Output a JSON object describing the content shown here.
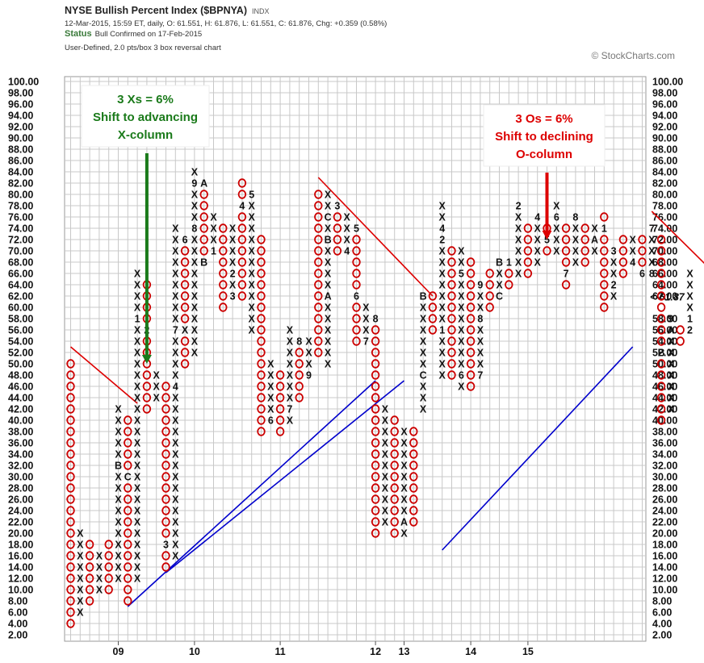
{
  "header": {
    "title": "NYSE Bullish Percent Index ($BPNYA)",
    "ticker_type": "INDX",
    "quote_line": "12-Mar-2015, 15:59 ET, daily, O: 61.551, H: 61.876, L: 61.551, C: 61.876, Chg: +0.359 (0.58%)",
    "status_label": "Status",
    "status_text": "Bull Confirmed on 17-Feb-2015",
    "chart_type": "User-Defined, 2.0 pts/box 3 box reversal chart",
    "copyright": "© StockCharts.com"
  },
  "colors": {
    "x_mark": "#111111",
    "o_mark": "#cc0000",
    "trend_up": "#0000cc",
    "trend_down": "#dd0000",
    "arrow_green": "#1a7a1a",
    "arrow_red": "#dd0000",
    "last_price": "#cc0000",
    "grid": "#c8c8c8"
  },
  "chart_data": {
    "type": "point-and-figure",
    "box_size": 2.0,
    "reversal_boxes": 3,
    "ylim": [
      2,
      100
    ],
    "y_ticks": [
      "2.00",
      "4.00",
      "6.00",
      "8.00",
      "10.00",
      "12.00",
      "14.00",
      "16.00",
      "18.00",
      "20.00",
      "22.00",
      "24.00",
      "26.00",
      "28.00",
      "30.00",
      "32.00",
      "34.00",
      "36.00",
      "38.00",
      "40.00",
      "42.00",
      "44.00",
      "46.00",
      "48.00",
      "50.00",
      "52.00",
      "54.00",
      "56.00",
      "58.00",
      "60.00",
      "62.00",
      "64.00",
      "66.00",
      "68.00",
      "70.00",
      "72.00",
      "74.00",
      "76.00",
      "78.00",
      "80.00",
      "82.00",
      "84.00",
      "86.00",
      "88.00",
      "90.00",
      "92.00",
      "94.00",
      "96.00",
      "98.00",
      "100.00"
    ],
    "highlighted_y_tick": "60.00",
    "last_value_label": "<-61.87",
    "x_year_labels": [
      {
        "label": "09",
        "col": 5
      },
      {
        "label": "10",
        "col": 13
      },
      {
        "label": "11",
        "col": 22
      },
      {
        "label": "12",
        "col": 32
      },
      {
        "label": "13",
        "col": 35
      },
      {
        "label": "14",
        "col": 42
      },
      {
        "label": "15",
        "col": 48
      }
    ],
    "columns": [
      {
        "type": "O",
        "top": 50,
        "bottom": 4,
        "labels": {}
      },
      {
        "type": "X",
        "top": 20,
        "bottom": 6,
        "labels": {
          "28": "A"
        }
      },
      {
        "type": "O",
        "top": 18,
        "bottom": 8,
        "labels": {}
      },
      {
        "type": "X",
        "top": 16,
        "bottom": 10,
        "labels": {}
      },
      {
        "type": "O",
        "top": 18,
        "bottom": 10,
        "labels": {}
      },
      {
        "type": "X",
        "top": 42,
        "bottom": 12,
        "labels": {
          "32": "B"
        }
      },
      {
        "type": "O",
        "top": 40,
        "bottom": 8,
        "labels": {
          "30": "C"
        }
      },
      {
        "type": "X",
        "top": 66,
        "bottom": 12,
        "labels": {
          "58": "1"
        }
      },
      {
        "type": "O",
        "top": 64,
        "bottom": 42,
        "labels": {
          "56": "2"
        }
      },
      {
        "type": "X",
        "top": 48,
        "bottom": 44,
        "labels": {}
      },
      {
        "type": "O",
        "top": 46,
        "bottom": 14,
        "labels": {
          "48": "2",
          "18": "3"
        }
      },
      {
        "type": "X",
        "top": 74,
        "bottom": 16,
        "labels": {
          "46": "4",
          "56": "7"
        }
      },
      {
        "type": "O",
        "top": 72,
        "bottom": 50,
        "labels": {
          "72": "6",
          "56": "X"
        }
      },
      {
        "type": "X",
        "top": 84,
        "bottom": 52,
        "labels": {
          "74": "8",
          "82": "9"
        }
      },
      {
        "type": "O",
        "top": 82,
        "bottom": 68,
        "labels": {
          "82": "A",
          "68": "B"
        }
      },
      {
        "type": "X",
        "top": 76,
        "bottom": 70,
        "labels": {
          "70": "1"
        }
      },
      {
        "type": "O",
        "top": 74,
        "bottom": 60,
        "labels": {}
      },
      {
        "type": "X",
        "top": 74,
        "bottom": 62,
        "labels": {
          "66": "2",
          "62": "3"
        }
      },
      {
        "type": "O",
        "top": 82,
        "bottom": 62,
        "labels": {
          "78": "4"
        }
      },
      {
        "type": "X",
        "top": 80,
        "bottom": 56,
        "labels": {
          "80": "5"
        }
      },
      {
        "type": "O",
        "top": 72,
        "bottom": 38,
        "labels": {}
      },
      {
        "type": "X",
        "top": 50,
        "bottom": 40,
        "labels": {
          "40": "6"
        }
      },
      {
        "type": "O",
        "top": 48,
        "bottom": 38,
        "labels": {}
      },
      {
        "type": "X",
        "top": 56,
        "bottom": 40,
        "labels": {
          "42": "7"
        }
      },
      {
        "type": "O",
        "top": 54,
        "bottom": 44,
        "labels": {
          "54": "8"
        }
      },
      {
        "type": "X",
        "top": 54,
        "bottom": 48,
        "labels": {
          "48": "9"
        }
      },
      {
        "type": "O",
        "top": 80,
        "bottom": 52,
        "labels": {}
      },
      {
        "type": "X",
        "top": 80,
        "bottom": 50,
        "labels": {
          "76": "C",
          "72": "B",
          "62": "A"
        }
      },
      {
        "type": "O",
        "top": 78,
        "bottom": 70,
        "labels": {
          "78": "3"
        }
      },
      {
        "type": "X",
        "top": 76,
        "bottom": 70,
        "labels": {
          "70": "4"
        }
      },
      {
        "type": "O",
        "top": 74,
        "bottom": 54,
        "labels": {
          "74": "5",
          "62": "6"
        }
      },
      {
        "type": "X",
        "top": 60,
        "bottom": 54,
        "labels": {
          "54": "7"
        }
      },
      {
        "type": "O",
        "top": 58,
        "bottom": 20,
        "labels": {
          "58": "8"
        }
      },
      {
        "type": "X",
        "top": 42,
        "bottom": 22,
        "labels": {}
      },
      {
        "type": "O",
        "top": 40,
        "bottom": 20,
        "labels": {
          "42": "9"
        }
      },
      {
        "type": "X",
        "top": 38,
        "bottom": 20,
        "labels": {
          "22": "A"
        }
      },
      {
        "type": "O",
        "top": 38,
        "bottom": 22,
        "labels": {}
      },
      {
        "type": "X",
        "top": 62,
        "bottom": 42,
        "labels": {
          "62": "B",
          "48": "C"
        }
      },
      {
        "type": "O",
        "top": 62,
        "bottom": 56,
        "labels": {}
      },
      {
        "type": "X",
        "top": 78,
        "bottom": 48,
        "labels": {
          "56": "1",
          "72": "2",
          "74": "4"
        }
      },
      {
        "type": "O",
        "top": 70,
        "bottom": 48,
        "labels": {}
      },
      {
        "type": "X",
        "top": 70,
        "bottom": 46,
        "labels": {
          "48": "6",
          "66": "5"
        }
      },
      {
        "type": "O",
        "top": 68,
        "bottom": 46,
        "labels": {}
      },
      {
        "type": "X",
        "top": 64,
        "bottom": 48,
        "labels": {
          "48": "7",
          "58": "8",
          "64": "9"
        }
      },
      {
        "type": "O",
        "top": 66,
        "bottom": 60,
        "labels": {}
      },
      {
        "type": "X",
        "top": 68,
        "bottom": 62,
        "labels": {
          "68": "B",
          "62": "C"
        }
      },
      {
        "type": "O",
        "top": 68,
        "bottom": 64,
        "labels": {
          "68": "1"
        }
      },
      {
        "type": "X",
        "top": 78,
        "bottom": 66,
        "labels": {
          "78": "2"
        }
      },
      {
        "type": "O",
        "top": 74,
        "bottom": 66,
        "labels": {}
      },
      {
        "type": "X",
        "top": 76,
        "bottom": 68,
        "labels": {
          "76": "4"
        }
      },
      {
        "type": "O",
        "top": 74,
        "bottom": 70,
        "labels": {
          "72": "5"
        }
      },
      {
        "type": "X",
        "top": 78,
        "bottom": 70,
        "labels": {
          "76": "6"
        }
      },
      {
        "type": "O",
        "top": 74,
        "bottom": 64,
        "labels": {
          "66": "7"
        }
      },
      {
        "type": "X",
        "top": 76,
        "bottom": 68,
        "labels": {
          "76": "8"
        }
      },
      {
        "type": "O",
        "top": 74,
        "bottom": 68,
        "labels": {}
      },
      {
        "type": "X",
        "top": 74,
        "bottom": 70,
        "labels": {
          "72": "A"
        }
      },
      {
        "type": "O",
        "top": 76,
        "bottom": 60,
        "labels": {
          "74": "1"
        }
      },
      {
        "type": "X",
        "top": 70,
        "bottom": 62,
        "labels": {
          "64": "2",
          "70": "3"
        }
      },
      {
        "type": "O",
        "top": 72,
        "bottom": 66,
        "labels": {}
      },
      {
        "type": "X",
        "top": 72,
        "bottom": 68,
        "labels": {
          "68": "4"
        }
      },
      {
        "type": "O",
        "top": 72,
        "bottom": 66,
        "labels": {
          "66": "6"
        }
      },
      {
        "type": "X",
        "top": 74,
        "bottom": 66,
        "labels": {
          "74": "7",
          "66": "8"
        }
      },
      {
        "type": "O",
        "top": 72,
        "bottom": 40,
        "labels": {
          "52": "B"
        }
      },
      {
        "type": "X",
        "top": 58,
        "bottom": 42,
        "labels": {
          "58": "9",
          "56": "A"
        }
      },
      {
        "type": "O",
        "top": 56,
        "bottom": 54,
        "labels": {}
      },
      {
        "type": "X",
        "top": 66,
        "bottom": 56,
        "labels": {
          "58": "1",
          "56": "2"
        }
      }
    ],
    "trend_lines": [
      {
        "color": "trend_down",
        "from": [
          0,
          53
        ],
        "to": [
          7,
          43
        ]
      },
      {
        "color": "trend_up",
        "from": [
          6,
          7
        ],
        "to": [
          32,
          47
        ]
      },
      {
        "color": "trend_up",
        "from": [
          10,
          13
        ],
        "to": [
          35,
          47
        ]
      },
      {
        "color": "trend_down",
        "from": [
          26,
          83
        ],
        "to": [
          38,
          62
        ]
      },
      {
        "color": "trend_up",
        "from": [
          39,
          17
        ],
        "to": [
          59,
          53
        ]
      },
      {
        "color": "trend_down",
        "from": [
          61,
          77
        ],
        "to": [
          67,
          67
        ]
      }
    ],
    "annotations": [
      {
        "lines": [
          "3 Xs = 6%",
          "Shift to advancing",
          "X-column"
        ],
        "color": "arrow_green"
      },
      {
        "lines": [
          "3 Os = 6%",
          "Shift to declining",
          "O-column"
        ],
        "color": "arrow_red"
      }
    ]
  }
}
